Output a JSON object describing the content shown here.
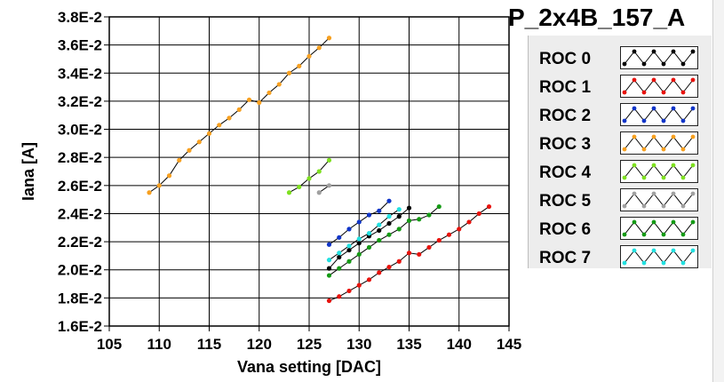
{
  "chart_data": {
    "type": "line",
    "title": "P_2x4B_157_A",
    "xlabel": "Vana setting [DAC]",
    "ylabel": "Iana [A]",
    "xlim": [
      105,
      145
    ],
    "ylim": [
      0.016,
      0.038
    ],
    "x_ticks": [
      "105",
      "110",
      "115",
      "120",
      "125",
      "130",
      "135",
      "140",
      "145"
    ],
    "y_ticks": [
      "1.6E-2",
      "1.8E-2",
      "2.0E-2",
      "2.2E-2",
      "2.4E-2",
      "2.6E-2",
      "2.8E-2",
      "3.0E-2",
      "3.2E-2",
      "3.4E-2",
      "3.6E-2",
      "3.8E-2"
    ],
    "grid": true,
    "legend_position": "right",
    "series": [
      {
        "name": "ROC 0",
        "color": "#000000",
        "x": [
          127,
          128,
          129,
          130,
          131,
          132,
          133,
          134,
          135
        ],
        "y": [
          0.0201,
          0.0209,
          0.0214,
          0.0219,
          0.0224,
          0.0228,
          0.0233,
          0.0238,
          0.0244
        ]
      },
      {
        "name": "ROC 1",
        "color": "#e8120c",
        "x": [
          127,
          128,
          129,
          130,
          131,
          132,
          133,
          134,
          135,
          136,
          137,
          138,
          139,
          140,
          141,
          142,
          143
        ],
        "y": [
          0.0178,
          0.0181,
          0.0185,
          0.0189,
          0.0193,
          0.0198,
          0.0202,
          0.0206,
          0.0212,
          0.0211,
          0.0216,
          0.0221,
          0.0225,
          0.0229,
          0.0234,
          0.024,
          0.0245
        ]
      },
      {
        "name": "ROC 2",
        "color": "#1035c8",
        "x": [
          127,
          128,
          129,
          130,
          131,
          132,
          133
        ],
        "y": [
          0.0218,
          0.0223,
          0.0229,
          0.0234,
          0.0239,
          0.0242,
          0.0249
        ]
      },
      {
        "name": "ROC 3",
        "color": "#f7a020",
        "x": [
          109,
          110,
          111,
          112,
          113,
          114,
          115,
          116,
          117,
          118,
          119,
          120,
          121,
          122,
          123,
          124,
          125,
          126,
          127
        ],
        "y": [
          0.0255,
          0.026,
          0.0267,
          0.0278,
          0.0285,
          0.0291,
          0.0297,
          0.0303,
          0.0308,
          0.0314,
          0.0321,
          0.0319,
          0.0326,
          0.0332,
          0.034,
          0.0345,
          0.0352,
          0.0358,
          0.0365
        ]
      },
      {
        "name": "ROC 4",
        "color": "#7ee020",
        "x": [
          123,
          124,
          125,
          126,
          127
        ],
        "y": [
          0.0255,
          0.0259,
          0.0265,
          0.027,
          0.0278
        ]
      },
      {
        "name": "ROC 5",
        "color": "#a0a0a0",
        "x": [
          126,
          127
        ],
        "y": [
          0.0255,
          0.026
        ]
      },
      {
        "name": "ROC 6",
        "color": "#149a14",
        "x": [
          127,
          128,
          129,
          130,
          131,
          132,
          133,
          134,
          135,
          136,
          137,
          138
        ],
        "y": [
          0.0196,
          0.0201,
          0.0206,
          0.0211,
          0.0216,
          0.0221,
          0.0225,
          0.0229,
          0.0235,
          0.0236,
          0.0239,
          0.0245
        ]
      },
      {
        "name": "ROC 7",
        "color": "#22e0e0",
        "x": [
          127,
          128,
          129,
          130,
          131,
          132,
          133,
          134
        ],
        "y": [
          0.0207,
          0.0212,
          0.0217,
          0.0222,
          0.0226,
          0.0232,
          0.0238,
          0.0243
        ]
      }
    ]
  }
}
